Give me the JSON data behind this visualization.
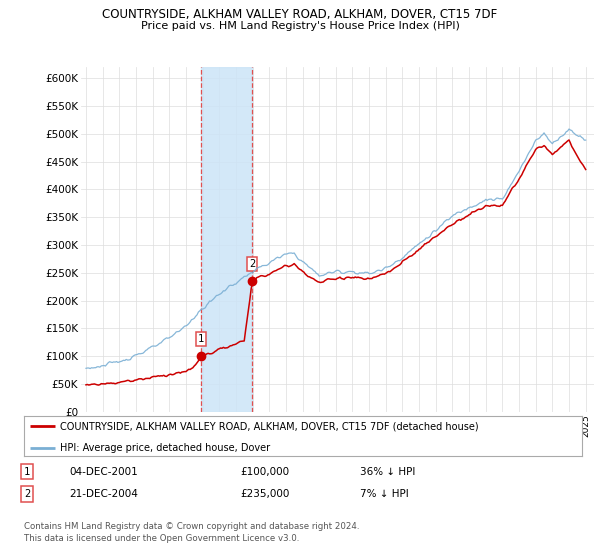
{
  "title": "COUNTRYSIDE, ALKHAM VALLEY ROAD, ALKHAM, DOVER, CT15 7DF",
  "subtitle": "Price paid vs. HM Land Registry's House Price Index (HPI)",
  "ylim": [
    0,
    620000
  ],
  "yticks": [
    0,
    50000,
    100000,
    150000,
    200000,
    250000,
    300000,
    350000,
    400000,
    450000,
    500000,
    550000,
    600000
  ],
  "ytick_labels": [
    "£0",
    "£50K",
    "£100K",
    "£150K",
    "£200K",
    "£250K",
    "£300K",
    "£350K",
    "£400K",
    "£450K",
    "£500K",
    "£550K",
    "£600K"
  ],
  "xlim_start": 1994.7,
  "xlim_end": 2025.5,
  "legend_property_label": "COUNTRYSIDE, ALKHAM VALLEY ROAD, ALKHAM, DOVER, CT15 7DF (detached house)",
  "legend_hpi_label": "HPI: Average price, detached house, Dover",
  "transaction1_date": "04-DEC-2001",
  "transaction1_price": "£100,000",
  "transaction1_hpi": "36% ↓ HPI",
  "transaction1_x": 2001.92,
  "transaction1_y": 100000,
  "transaction2_date": "21-DEC-2004",
  "transaction2_price": "£235,000",
  "transaction2_hpi": "7% ↓ HPI",
  "transaction2_x": 2004.97,
  "transaction2_y": 235000,
  "vline1_x": 2001.92,
  "vline2_x": 2004.97,
  "shade_color": "#cce4f7",
  "vline_color": "#e05050",
  "property_line_color": "#cc0000",
  "hpi_line_color": "#7aafd4",
  "footer_text": "Contains HM Land Registry data © Crown copyright and database right 2024.\nThis data is licensed under the Open Government Licence v3.0.",
  "background_color": "#ffffff",
  "grid_color": "#dddddd"
}
